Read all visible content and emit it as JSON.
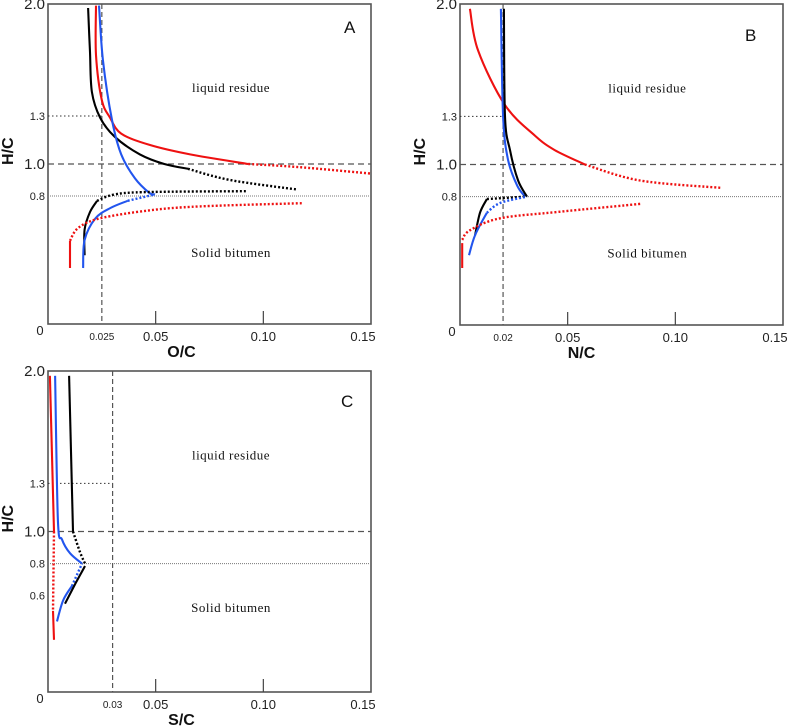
{
  "chart_data": [
    {
      "id": "A",
      "type": "line",
      "panel_label": "A",
      "xlabel": "O/C",
      "ylabel": "H/C",
      "xlim": [
        0,
        0.15
      ],
      "ylim": [
        0,
        2.0
      ],
      "x_ticks": [
        {
          "value": 0.05,
          "label": "0.05"
        },
        {
          "value": 0.1,
          "label": "0.10"
        },
        {
          "value": 0.15,
          "label": "0.15"
        }
      ],
      "x_origin_label": "0",
      "x_ref": {
        "value": 0.025,
        "label": "0.025"
      },
      "y_ticks": [
        {
          "value": 2.0,
          "label": "2.0"
        },
        {
          "value": 1.3,
          "label": "1.3"
        },
        {
          "value": 1.0,
          "label": "1.0"
        },
        {
          "value": 0.8,
          "label": "0.8"
        }
      ],
      "ref_lines": {
        "h_dashed": 1.0,
        "h_fine_dotted": 0.8,
        "h_short_dotted": 1.3,
        "v_dashed": 0.025
      },
      "regions": [
        {
          "label": "liquid residue",
          "x": 0.085,
          "y": 1.45
        },
        {
          "label": "Solid bitumen",
          "x": 0.085,
          "y": 0.42
        }
      ],
      "series": [
        {
          "name": "black-upper",
          "color": "#000000",
          "style": "solid",
          "points": [
            [
              0.0186,
              1.975
            ],
            [
              0.0195,
              1.7
            ],
            [
              0.0204,
              1.45
            ],
            [
              0.0242,
              1.29
            ],
            [
              0.031,
              1.17
            ],
            [
              0.0427,
              1.06
            ],
            [
              0.054,
              1.0
            ],
            [
              0.065,
              0.97
            ]
          ]
        },
        {
          "name": "black-upper-ext",
          "color": "#000000",
          "style": "dotted",
          "points": [
            [
              0.065,
              0.97
            ],
            [
              0.0845,
              0.9
            ],
            [
              0.116,
              0.84
            ]
          ]
        },
        {
          "name": "red-upper",
          "color": "#ee1111",
          "style": "solid",
          "points": [
            [
              0.0223,
              1.99
            ],
            [
              0.0223,
              1.68
            ],
            [
              0.025,
              1.4
            ],
            [
              0.0288,
              1.29
            ],
            [
              0.034,
              1.19
            ],
            [
              0.047,
              1.12
            ],
            [
              0.066,
              1.06
            ],
            [
              0.093,
              1.0
            ]
          ]
        },
        {
          "name": "red-upper-ext",
          "color": "#ee1111",
          "style": "dotted",
          "points": [
            [
              0.093,
              1.0
            ],
            [
              0.117,
              0.98
            ],
            [
              0.15,
              0.94
            ]
          ]
        },
        {
          "name": "blue-upper",
          "color": "#2255ee",
          "style": "solid",
          "points": [
            [
              0.0237,
              1.99
            ],
            [
              0.0255,
              1.65
            ],
            [
              0.0297,
              1.275
            ],
            [
              0.034,
              1.06
            ],
            [
              0.0404,
              0.91
            ],
            [
              0.047,
              0.82
            ],
            [
              0.0497,
              0.81
            ]
          ]
        },
        {
          "name": "black-lower-ext",
          "color": "#000000",
          "style": "dotted",
          "points": [
            [
              0.0228,
              0.77
            ],
            [
              0.031,
              0.81
            ],
            [
              0.047,
              0.825
            ],
            [
              0.092,
              0.83
            ]
          ]
        },
        {
          "name": "black-lower",
          "color": "#000000",
          "style": "solid",
          "points": [
            [
              0.017,
              0.43
            ],
            [
              0.017,
              0.59
            ],
            [
              0.0195,
              0.7
            ],
            [
              0.0228,
              0.77
            ]
          ]
        },
        {
          "name": "blue-lower",
          "color": "#2255ee",
          "style": "solid",
          "points": [
            [
              0.0163,
              0.35
            ],
            [
              0.017,
              0.525
            ],
            [
              0.022,
              0.66
            ],
            [
              0.029,
              0.725
            ],
            [
              0.037,
              0.77
            ]
          ]
        },
        {
          "name": "blue-lower-ext",
          "color": "#2255ee",
          "style": "dotted",
          "points": [
            [
              0.037,
              0.77
            ],
            [
              0.0497,
              0.81
            ]
          ]
        },
        {
          "name": "red-lower",
          "color": "#ee1111",
          "style": "solid",
          "points": [
            [
              0.0102,
              0.35
            ],
            [
              0.0102,
              0.52
            ]
          ]
        },
        {
          "name": "red-lower-ext",
          "color": "#ee1111",
          "style": "dotted",
          "points": [
            [
              0.0102,
              0.52
            ],
            [
              0.014,
              0.6
            ],
            [
              0.024,
              0.66
            ],
            [
              0.047,
              0.71
            ],
            [
              0.0706,
              0.735
            ],
            [
              0.118,
              0.755
            ]
          ]
        }
      ]
    },
    {
      "id": "B",
      "type": "line",
      "panel_label": "B",
      "xlabel": "N/C",
      "ylabel": "H/C",
      "xlim": [
        0,
        0.15
      ],
      "ylim": [
        0,
        2.0
      ],
      "x_ticks": [
        {
          "value": 0.05,
          "label": "0.05"
        },
        {
          "value": 0.1,
          "label": "0.10"
        },
        {
          "value": 0.15,
          "label": "0.15"
        }
      ],
      "x_origin_label": "0",
      "x_ref": {
        "value": 0.02,
        "label": "0.02"
      },
      "y_ticks": [
        {
          "value": 2.0,
          "label": "2.0"
        },
        {
          "value": 1.3,
          "label": "1.3"
        },
        {
          "value": 1.0,
          "label": "1.0"
        },
        {
          "value": 0.8,
          "label": "0.8"
        }
      ],
      "ref_lines": {
        "h_dashed": 1.0,
        "h_fine_dotted": 0.8,
        "h_short_dotted": 1.3,
        "v_dashed": 0.02
      },
      "regions": [
        {
          "label": "liquid residue",
          "x": 0.087,
          "y": 1.45
        },
        {
          "label": "Solid bitumen",
          "x": 0.087,
          "y": 0.42
        }
      ],
      "series": [
        {
          "name": "red-upper",
          "color": "#ee1111",
          "style": "solid",
          "points": [
            [
              0.0046,
              1.97
            ],
            [
              0.0084,
              1.71
            ],
            [
              0.0209,
              1.37
            ],
            [
              0.0348,
              1.18
            ],
            [
              0.044,
              1.09
            ],
            [
              0.058,
              1.0
            ]
          ]
        },
        {
          "name": "red-upper-ext",
          "color": "#ee1111",
          "style": "dotted",
          "points": [
            [
              0.058,
              1.0
            ],
            [
              0.0836,
              0.9
            ],
            [
              0.121,
              0.855
            ]
          ]
        },
        {
          "name": "blue-upper",
          "color": "#2255ee",
          "style": "solid",
          "points": [
            [
              0.019,
              1.97
            ],
            [
              0.02,
              1.3
            ],
            [
              0.0223,
              1.03
            ],
            [
              0.0265,
              0.87
            ],
            [
              0.0302,
              0.8
            ]
          ]
        },
        {
          "name": "black-upper",
          "color": "#000000",
          "style": "solid",
          "points": [
            [
              0.0204,
              1.97
            ],
            [
              0.0209,
              1.3
            ],
            [
              0.0232,
              1.09
            ],
            [
              0.027,
              0.9
            ],
            [
              0.0311,
              0.8
            ]
          ]
        },
        {
          "name": "black-lower-ext",
          "color": "#000000",
          "style": "dotted",
          "points": [
            [
              0.0125,
              0.785
            ],
            [
              0.0311,
              0.8
            ]
          ]
        },
        {
          "name": "black-lower",
          "color": "#000000",
          "style": "solid",
          "points": [
            [
              0.007,
              0.56
            ],
            [
              0.0093,
              0.7
            ],
            [
              0.0125,
              0.785
            ]
          ]
        },
        {
          "name": "blue-lower",
          "color": "#2255ee",
          "style": "solid",
          "points": [
            [
              0.0042,
              0.435
            ],
            [
              0.007,
              0.56
            ],
            [
              0.0125,
              0.7
            ]
          ]
        },
        {
          "name": "blue-lower-ext",
          "color": "#2255ee",
          "style": "dotted",
          "points": [
            [
              0.0125,
              0.7
            ],
            [
              0.0186,
              0.76
            ],
            [
              0.0311,
              0.8
            ]
          ]
        },
        {
          "name": "red-lower",
          "color": "#ee1111",
          "style": "solid",
          "points": [
            [
              0.001,
              0.355
            ],
            [
              0.001,
              0.51
            ]
          ]
        },
        {
          "name": "red-lower-ext",
          "color": "#ee1111",
          "style": "dotted",
          "points": [
            [
              0.001,
              0.53
            ],
            [
              0.0046,
              0.59
            ],
            [
              0.0186,
              0.665
            ],
            [
              0.046,
              0.705
            ],
            [
              0.084,
              0.755
            ]
          ]
        }
      ]
    },
    {
      "id": "C",
      "type": "line",
      "panel_label": "C",
      "xlabel": "S/C",
      "ylabel": "H/C",
      "xlim": [
        0,
        0.15
      ],
      "ylim": [
        0,
        2.0
      ],
      "x_ticks": [
        {
          "value": 0.05,
          "label": "0.05"
        },
        {
          "value": 0.1,
          "label": "0.10"
        },
        {
          "value": 0.15,
          "label": "0.15"
        }
      ],
      "x_origin_label": "0",
      "x_ref": {
        "value": 0.03,
        "label": "0.03"
      },
      "y_ticks": [
        {
          "value": 2.0,
          "label": "2.0"
        },
        {
          "value": 1.3,
          "label": "1.3"
        },
        {
          "value": 1.0,
          "label": "1.0"
        },
        {
          "value": 0.8,
          "label": "0.8"
        },
        {
          "value": 0.6,
          "label": "0.6"
        }
      ],
      "ref_lines": {
        "h_dashed": 1.0,
        "h_fine_dotted": 0.8,
        "h_short_dotted": 1.3,
        "v_dashed": 0.03
      },
      "regions": [
        {
          "label": "liquid residue",
          "x": 0.085,
          "y": 1.45
        },
        {
          "label": "Solid bitumen",
          "x": 0.085,
          "y": 0.5
        }
      ],
      "series": [
        {
          "name": "red-upper",
          "color": "#ee1111",
          "style": "solid",
          "points": [
            [
              0.0009,
              1.97
            ],
            [
              0.0028,
              1.0
            ]
          ]
        },
        {
          "name": "red-mid",
          "color": "#ee1111",
          "style": "dotted",
          "points": [
            [
              0.0028,
              1.0
            ],
            [
              0.0023,
              0.505
            ]
          ]
        },
        {
          "name": "red-lower",
          "color": "#ee1111",
          "style": "solid",
          "points": [
            [
              0.0023,
              0.505
            ],
            [
              0.0028,
              0.325
            ]
          ]
        },
        {
          "name": "blue-upper",
          "color": "#2255ee",
          "style": "solid",
          "points": [
            [
              0.0033,
              1.97
            ],
            [
              0.0046,
              1.07
            ],
            [
              0.0065,
              0.95
            ],
            [
              0.0102,
              0.865
            ],
            [
              0.0158,
              0.8
            ]
          ]
        },
        {
          "name": "blue-lower",
          "color": "#2255ee",
          "style": "solid",
          "points": [
            [
              0.0042,
              0.44
            ],
            [
              0.007,
              0.57
            ],
            [
              0.0111,
              0.66
            ]
          ]
        },
        {
          "name": "blue-lower-ext",
          "color": "#2255ee",
          "style": "dotted",
          "points": [
            [
              0.0111,
              0.66
            ],
            [
              0.0158,
              0.8
            ]
          ]
        },
        {
          "name": "black-upper",
          "color": "#000000",
          "style": "solid",
          "points": [
            [
              0.0098,
              1.97
            ],
            [
              0.0116,
              1.0
            ]
          ]
        },
        {
          "name": "black-upper-ext",
          "color": "#000000",
          "style": "dotted",
          "points": [
            [
              0.0116,
              1.0
            ],
            [
              0.0149,
              0.87
            ],
            [
              0.0172,
              0.8
            ]
          ]
        },
        {
          "name": "black-lower",
          "color": "#000000",
          "style": "solid",
          "points": [
            [
              0.0079,
              0.55
            ],
            [
              0.0125,
              0.67
            ],
            [
              0.0172,
              0.785
            ]
          ]
        }
      ]
    }
  ]
}
